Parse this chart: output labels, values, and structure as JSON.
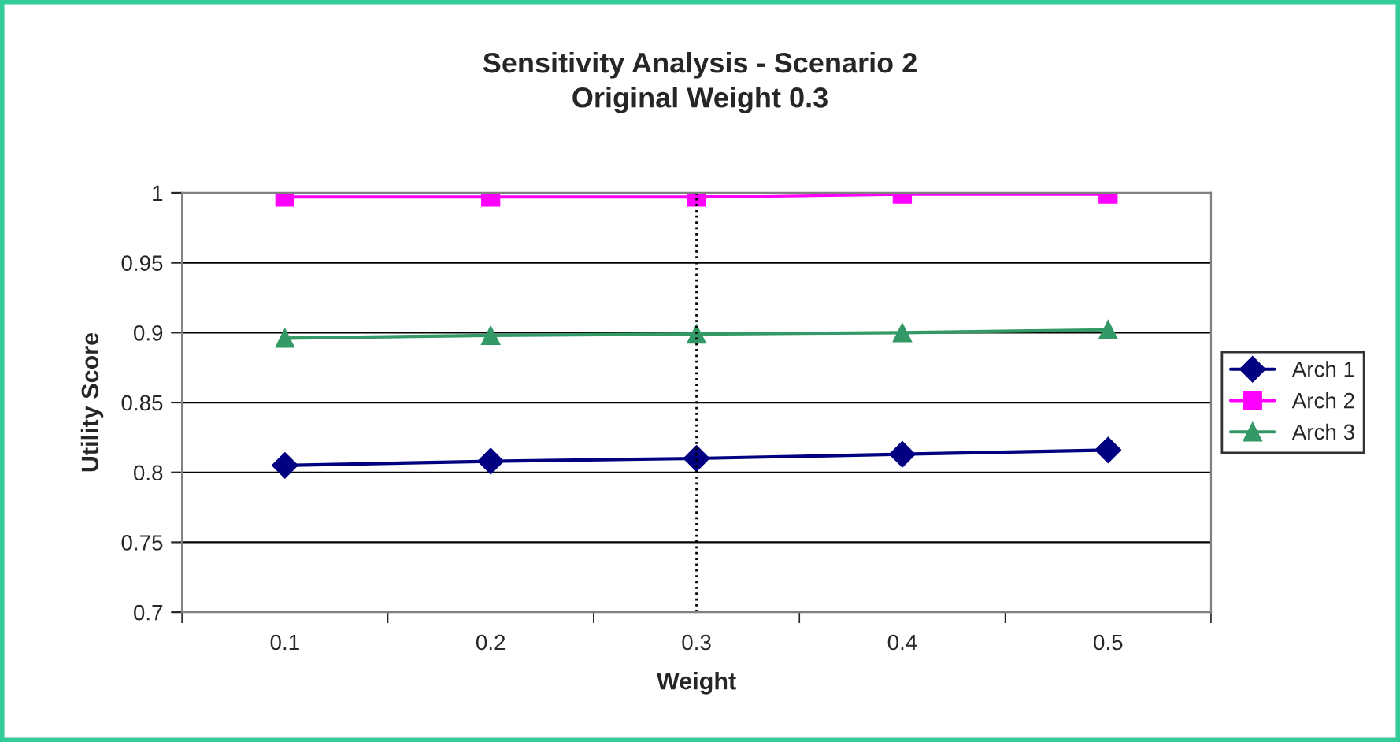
{
  "chart_data": {
    "type": "line",
    "title": "Sensitivity Analysis - Scenario 2\nOriginal Weight 0.3",
    "xlabel": "Weight",
    "ylabel": "Utility Score",
    "categories": [
      "0.1",
      "0.2",
      "0.3",
      "0.4",
      "0.5"
    ],
    "series": [
      {
        "name": "Arch 1",
        "color": "#000080",
        "marker": "diamond",
        "values": [
          0.805,
          0.808,
          0.81,
          0.813,
          0.816
        ]
      },
      {
        "name": "Arch 2",
        "color": "#ff00ff",
        "marker": "square",
        "values": [
          0.997,
          0.997,
          0.997,
          0.999,
          0.999
        ]
      },
      {
        "name": "Arch 3",
        "color": "#339966",
        "marker": "triangle",
        "values": [
          0.896,
          0.898,
          0.899,
          0.9,
          0.902
        ]
      }
    ],
    "ylim": [
      0.7,
      1
    ],
    "yticks": [
      {
        "value": 0.7,
        "label": "0.7"
      },
      {
        "value": 0.75,
        "label": "0.75"
      },
      {
        "value": 0.8,
        "label": "0.8"
      },
      {
        "value": 0.85,
        "label": "0.85"
      },
      {
        "value": 0.9,
        "label": "0.9"
      },
      {
        "value": 0.95,
        "label": "0.95"
      },
      {
        "value": 1,
        "label": "1"
      }
    ],
    "ref_lines": [
      {
        "axis": "x",
        "value": "0.3",
        "color": "#000000",
        "line_style": "dotted"
      }
    ],
    "grid": "y",
    "legend": "right"
  }
}
